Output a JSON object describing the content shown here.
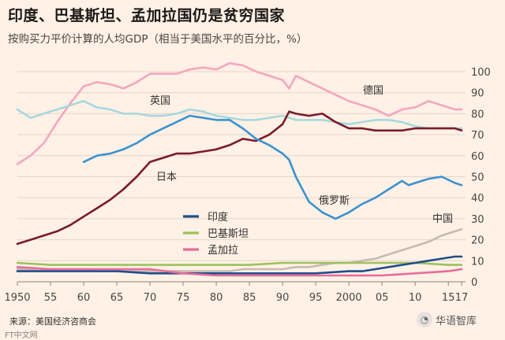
{
  "title": "印度、巴基斯坦、孟加拉国仍是贫穷国家",
  "subtitle": "按购买力平价计算的人均GDP（相当于美国水平的百分比，%）",
  "source": "来源：美国经济咨商会",
  "logo_text": "FT中文网",
  "watermark": {
    "icon": "wechat-icon",
    "text": "华语智库"
  },
  "colors": {
    "background": "#fff1e5",
    "gridline": "#e3d6c9",
    "axis_text": "#4a4542",
    "india": "#1f4e8c",
    "pakistan": "#9ac25c",
    "bangladesh": "#e86b9a",
    "japan": "#7b1b2a",
    "russia": "#3b92cf",
    "uk": "#a6d8df",
    "germany": "#f4a6c1",
    "china": "#c6bab3"
  },
  "chart_data": {
    "type": "line",
    "title": "印度、巴基斯坦、孟加拉国仍是贫穷国家",
    "ylabel": "按购买力平价计算的人均GDP（相当于美国水平的百分比，%）",
    "xlim": [
      1950,
      2017
    ],
    "ylim": [
      0,
      100
    ],
    "yticks": [
      0,
      10,
      20,
      30,
      40,
      50,
      60,
      70,
      80,
      90,
      100
    ],
    "xticks": [
      {
        "value": 1950,
        "label": "1950"
      },
      {
        "value": 1955,
        "label": "55"
      },
      {
        "value": 1960,
        "label": "60"
      },
      {
        "value": 1965,
        "label": "65"
      },
      {
        "value": 1970,
        "label": "70"
      },
      {
        "value": 1975,
        "label": "75"
      },
      {
        "value": 1980,
        "label": "80"
      },
      {
        "value": 1985,
        "label": "85"
      },
      {
        "value": 1990,
        "label": "90"
      },
      {
        "value": 1995,
        "label": "95"
      },
      {
        "value": 2000,
        "label": "2000"
      },
      {
        "value": 2005,
        "label": "05"
      },
      {
        "value": 2010,
        "label": "10"
      },
      {
        "value": 2015,
        "label": "15"
      },
      {
        "value": 2017,
        "label": "17"
      }
    ],
    "grid": true,
    "legend_position": "bottom-left",
    "legend": [
      "印度",
      "巴基斯坦",
      "孟加拉"
    ],
    "series": [
      {
        "key": "germany",
        "name": "德国",
        "label": "德国",
        "x": [
          1950,
          1952,
          1954,
          1956,
          1958,
          1960,
          1962,
          1964,
          1966,
          1968,
          1970,
          1972,
          1974,
          1976,
          1978,
          1980,
          1982,
          1984,
          1986,
          1988,
          1990,
          1991,
          1992,
          1994,
          1996,
          1998,
          2000,
          2002,
          2004,
          2006,
          2008,
          2010,
          2012,
          2014,
          2016,
          2017
        ],
        "y": [
          56,
          60,
          66,
          76,
          85,
          93,
          95,
          94,
          92,
          95,
          99,
          99,
          99,
          101,
          102,
          101,
          104,
          103,
          100,
          98,
          96,
          92,
          98,
          95,
          92,
          89,
          86,
          84,
          82,
          79,
          82,
          83,
          86,
          84,
          82,
          82
        ]
      },
      {
        "key": "uk",
        "name": "英国",
        "label": "英国",
        "x": [
          1950,
          1952,
          1954,
          1956,
          1958,
          1960,
          1962,
          1964,
          1966,
          1968,
          1970,
          1972,
          1974,
          1976,
          1978,
          1980,
          1982,
          1984,
          1986,
          1988,
          1990,
          1992,
          1994,
          1996,
          1998,
          2000,
          2002,
          2004,
          2006,
          2008,
          2010,
          2012,
          2014,
          2016,
          2017
        ],
        "y": [
          82,
          78,
          80,
          82,
          84,
          86,
          83,
          82,
          80,
          80,
          79,
          79,
          80,
          82,
          81,
          79,
          78,
          77,
          77,
          78,
          79,
          77,
          77,
          77,
          76,
          75,
          76,
          77,
          77,
          76,
          74,
          73,
          73,
          73,
          73
        ]
      },
      {
        "key": "japan",
        "name": "日本",
        "label": "日本",
        "x": [
          1950,
          1952,
          1954,
          1956,
          1958,
          1960,
          1962,
          1964,
          1966,
          1968,
          1970,
          1972,
          1974,
          1976,
          1978,
          1980,
          1982,
          1984,
          1986,
          1988,
          1990,
          1991,
          1992,
          1994,
          1996,
          1998,
          2000,
          2002,
          2004,
          2006,
          2008,
          2010,
          2012,
          2014,
          2016,
          2017
        ],
        "y": [
          18,
          20,
          22,
          24,
          27,
          31,
          35,
          39,
          44,
          50,
          57,
          59,
          61,
          61,
          62,
          63,
          65,
          68,
          67,
          70,
          75,
          81,
          80,
          79,
          80,
          76,
          73,
          73,
          72,
          72,
          72,
          73,
          73,
          73,
          73,
          72
        ]
      },
      {
        "key": "russia",
        "name": "俄罗斯",
        "label": "俄罗斯",
        "x": [
          1960,
          1962,
          1964,
          1966,
          1968,
          1970,
          1972,
          1974,
          1976,
          1978,
          1980,
          1982,
          1984,
          1986,
          1988,
          1990,
          1991,
          1992,
          1994,
          1996,
          1998,
          2000,
          2002,
          2004,
          2006,
          2008,
          2009,
          2010,
          2012,
          2014,
          2016,
          2017
        ],
        "y": [
          57,
          60,
          61,
          63,
          66,
          70,
          73,
          76,
          79,
          78,
          77,
          77,
          73,
          68,
          65,
          61,
          58,
          50,
          38,
          33,
          30,
          33,
          37,
          40,
          44,
          48,
          46,
          47,
          49,
          50,
          47,
          46
        ]
      },
      {
        "key": "china",
        "name": "中国",
        "label": "中国",
        "x": [
          1950,
          1952,
          1954,
          1956,
          1958,
          1960,
          1962,
          1964,
          1966,
          1968,
          1970,
          1972,
          1974,
          1976,
          1978,
          1980,
          1982,
          1984,
          1986,
          1988,
          1990,
          1992,
          1994,
          1996,
          1998,
          2000,
          2002,
          2004,
          2006,
          2008,
          2010,
          2012,
          2014,
          2016,
          2017
        ],
        "y": [
          6,
          6,
          6,
          6,
          6,
          6,
          5,
          5,
          5,
          5,
          5,
          5,
          5,
          5,
          5,
          5,
          5,
          6,
          6,
          6,
          6,
          7,
          7,
          8,
          9,
          9,
          10,
          11,
          13,
          15,
          17,
          19,
          22,
          24,
          25
        ]
      },
      {
        "key": "pakistan",
        "name": "巴基斯坦",
        "label": "巴基斯坦",
        "x": [
          1950,
          1955,
          1960,
          1965,
          1970,
          1975,
          1980,
          1985,
          1990,
          1995,
          2000,
          2005,
          2010,
          2015,
          2017
        ],
        "y": [
          9,
          8,
          8,
          8,
          8,
          8,
          8,
          8,
          9,
          9,
          9,
          9,
          9,
          8,
          8
        ]
      },
      {
        "key": "india",
        "name": "印度",
        "label": "印度",
        "x": [
          1950,
          1955,
          1960,
          1965,
          1970,
          1975,
          1980,
          1985,
          1990,
          1995,
          2000,
          2002,
          2004,
          2006,
          2008,
          2010,
          2012,
          2014,
          2016,
          2017
        ],
        "y": [
          5,
          5,
          5,
          5,
          4,
          4,
          4,
          4,
          4,
          4,
          5,
          5,
          6,
          7,
          8,
          9,
          10,
          11,
          12,
          12
        ]
      },
      {
        "key": "bangladesh",
        "name": "孟加拉",
        "label": "孟加拉",
        "x": [
          1950,
          1955,
          1960,
          1965,
          1970,
          1975,
          1980,
          1985,
          1990,
          1995,
          2000,
          2005,
          2010,
          2015,
          2017
        ],
        "y": [
          7,
          6,
          6,
          6,
          6,
          4,
          3,
          3,
          3,
          3,
          3,
          3,
          4,
          5,
          6
        ]
      }
    ]
  }
}
